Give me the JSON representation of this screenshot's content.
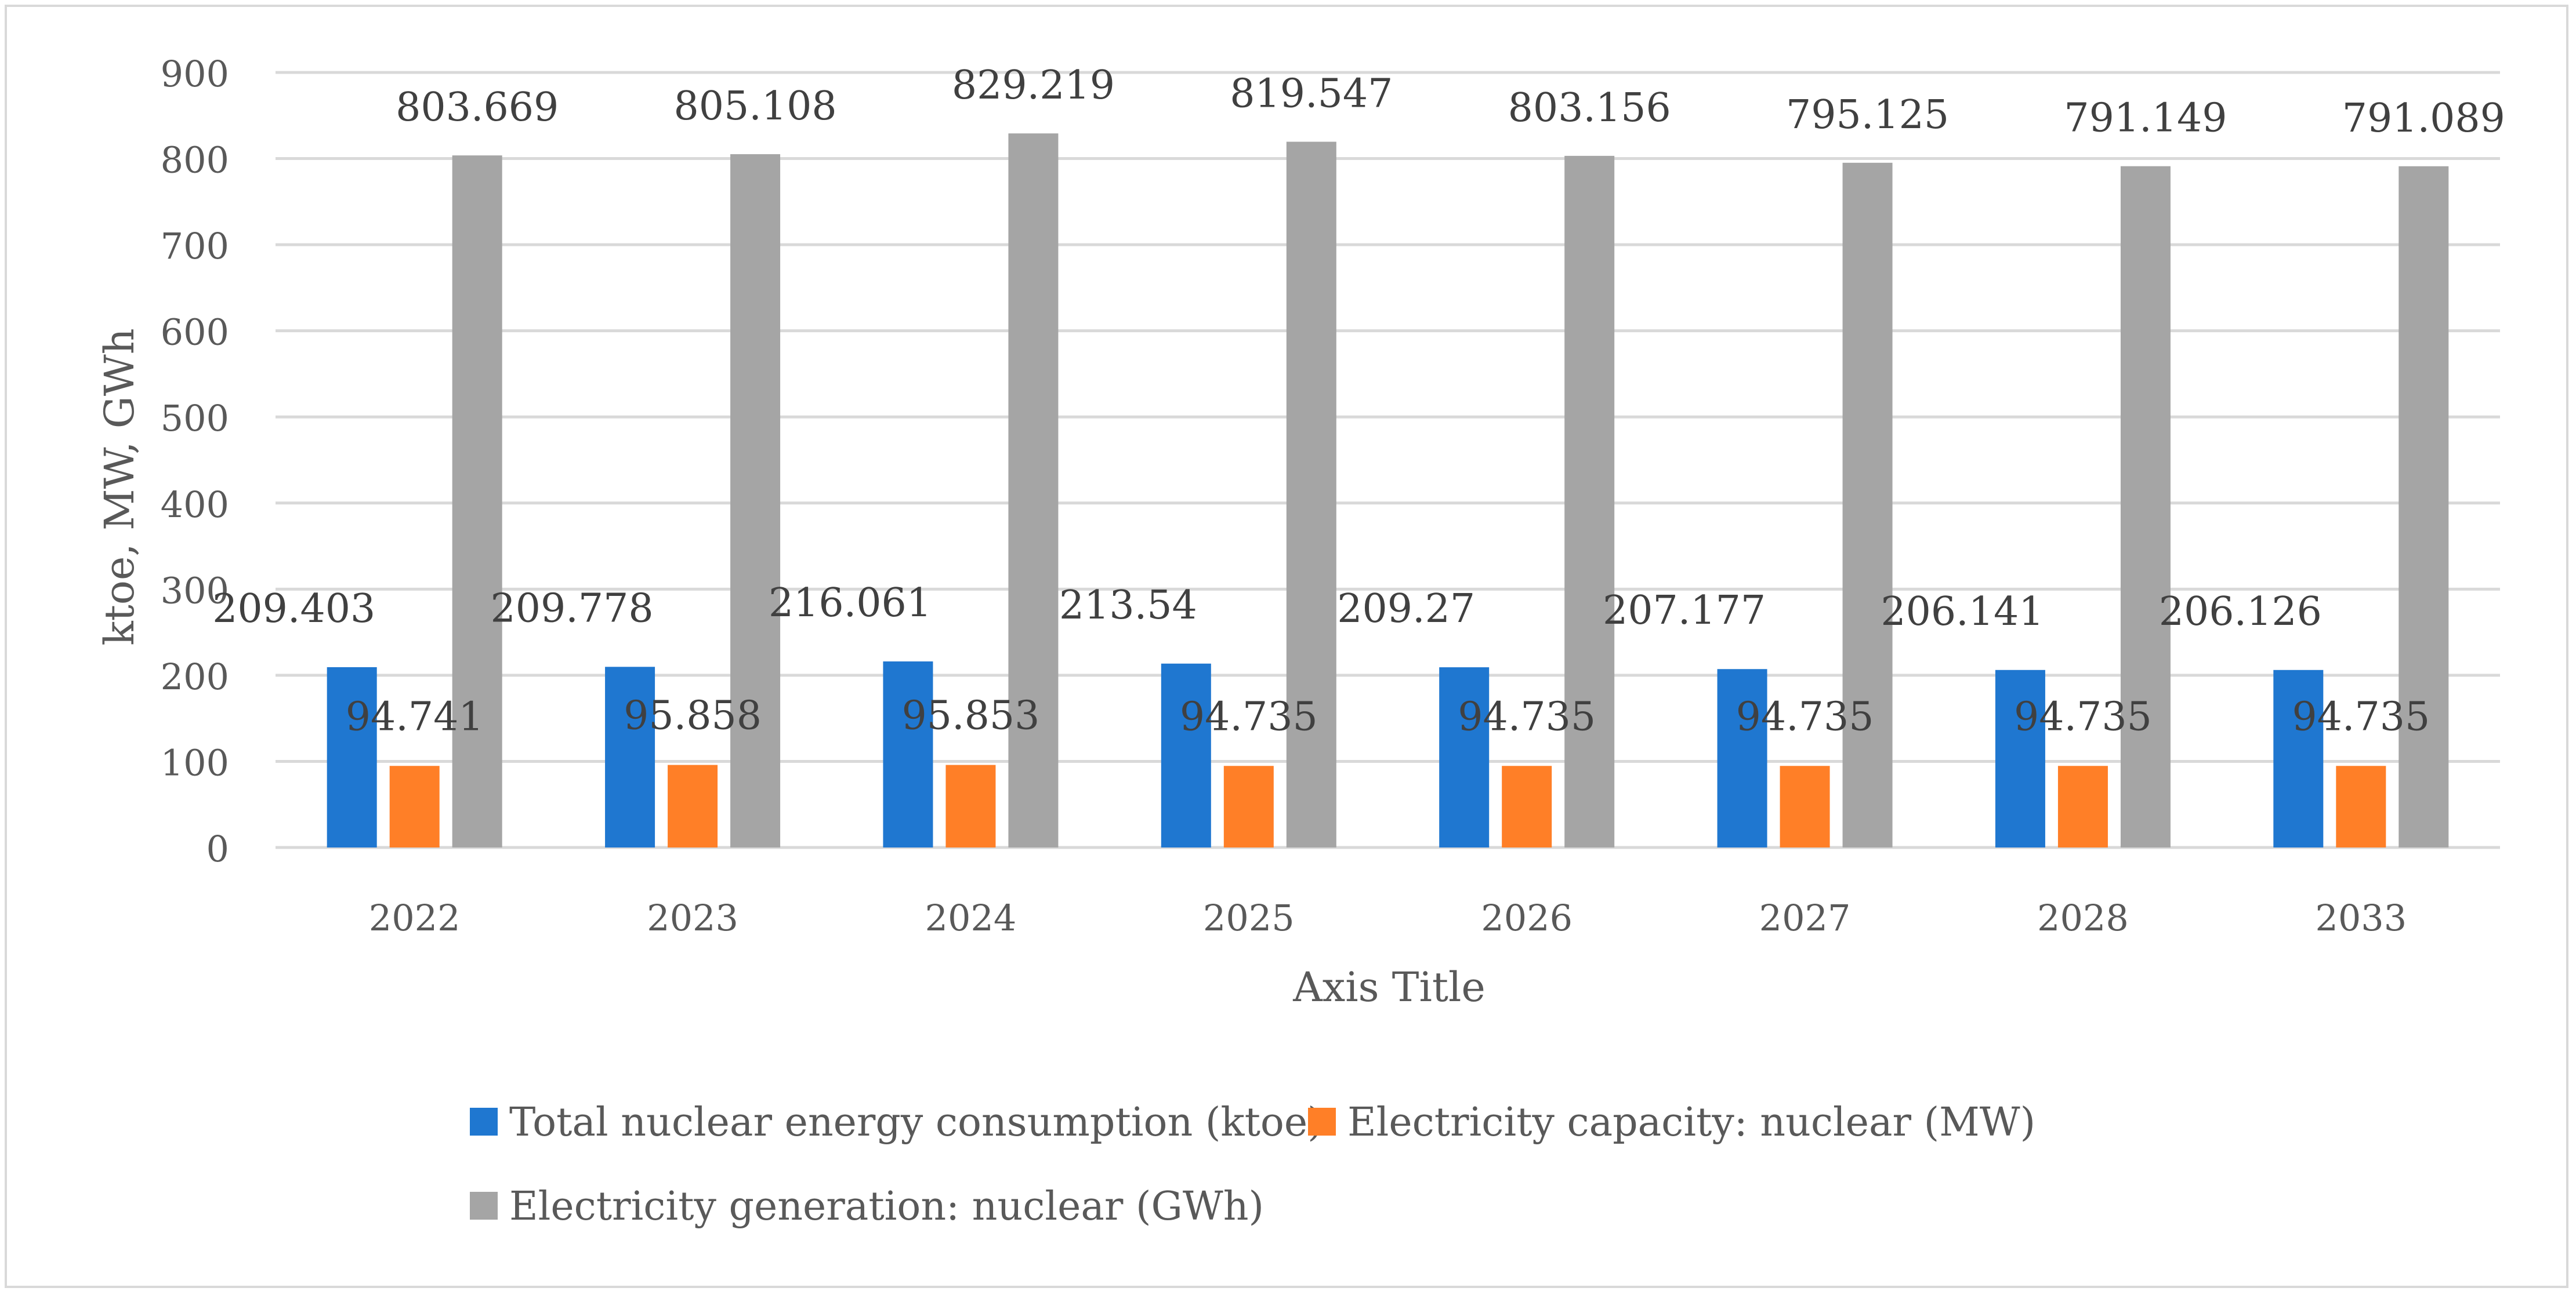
{
  "chart_data": {
    "type": "bar",
    "title": "",
    "xlabel": "Axis Title",
    "ylabel": "ktoe, MW, GWh",
    "ylim": [
      0,
      900
    ],
    "yticks": [
      0,
      100,
      200,
      300,
      400,
      500,
      600,
      700,
      800,
      900
    ],
    "grid": true,
    "legend_position": "bottom",
    "categories": [
      "2022",
      "2023",
      "2024",
      "2025",
      "2026",
      "2027",
      "2028",
      "2033"
    ],
    "series": [
      {
        "name": "Total nuclear energy consumption (ktoe)",
        "color": "#1f77d0",
        "values": [
          209.403,
          209.778,
          216.061,
          213.54,
          209.27,
          207.177,
          206.141,
          206.126
        ],
        "labels": [
          "209.403",
          "209.778",
          "216.061",
          "213.54",
          "209.27",
          "207.177",
          "206.141",
          "206.126"
        ]
      },
      {
        "name": "Electricity capacity: nuclear (MW)",
        "color": "#ff7f27",
        "values": [
          94.741,
          95.858,
          95.853,
          94.735,
          94.735,
          94.735,
          94.735,
          94.735
        ],
        "labels": [
          "94.741",
          "95.858",
          "95.853",
          "94.735",
          "94.735",
          "94.735",
          "94.735",
          "94.735"
        ]
      },
      {
        "name": "Electricity generation: nuclear (GWh)",
        "color": "#a5a5a5",
        "values": [
          803.669,
          805.108,
          829.219,
          819.547,
          803.156,
          795.125,
          791.149,
          791.089
        ],
        "labels": [
          "803.669",
          "805.108",
          "829.219",
          "819.547",
          "803.156",
          "795.125",
          "791.149",
          "791.089"
        ]
      }
    ]
  }
}
